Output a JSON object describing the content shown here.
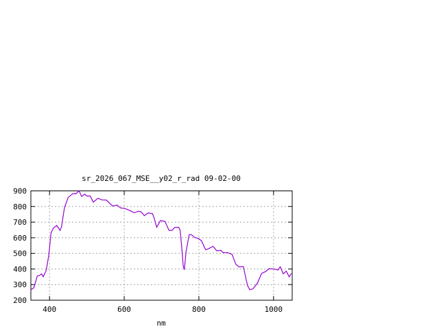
{
  "chart_data": {
    "type": "line",
    "title": "sr_2026_067_MSE__y02_r_rad 09-02-00",
    "xlabel": "nm",
    "ylabel": "",
    "xlim": [
      350,
      1050
    ],
    "ylim": [
      200,
      900
    ],
    "xticks": [
      400,
      600,
      800,
      1000
    ],
    "yticks": [
      200,
      300,
      400,
      500,
      600,
      700,
      800,
      900
    ],
    "grid": true,
    "line_color": "#9400d3",
    "series": [
      {
        "x": [
          349,
          358,
          367,
          373,
          379,
          383,
          391,
          398,
          404,
          410,
          419,
          428,
          432,
          440,
          450,
          462,
          471,
          479,
          486,
          494,
          500,
          509,
          517,
          530,
          540,
          552,
          569,
          581,
          590,
          602,
          615,
          627,
          639,
          645,
          654,
          664,
          676,
          681,
          687,
          697,
          709,
          720,
          728,
          736,
          746,
          750,
          755,
          758,
          761,
          766,
          774,
          780,
          789,
          798,
          807,
          818,
          826,
          838,
          848,
          859,
          865,
          878,
          889,
          899,
          908,
          919,
          930,
          936,
          945,
          957,
          968,
          979,
          988,
          997,
          1006,
          1012,
          1018,
          1026,
          1034,
          1042,
          1048
        ],
        "y": [
          267,
          280,
          355,
          358,
          369,
          350,
          390,
          487,
          630,
          661,
          679,
          647,
          669,
          793,
          858,
          882,
          882,
          901,
          864,
          879,
          867,
          867,
          828,
          853,
          842,
          841,
          803,
          809,
          791,
          787,
          774,
          760,
          770,
          766,
          741,
          759,
          754,
          720,
          667,
          710,
          705,
          647,
          647,
          667,
          667,
          647,
          515,
          420,
          395,
          515,
          620,
          620,
          601,
          596,
          581,
          523,
          530,
          545,
          516,
          519,
          504,
          504,
          493,
          430,
          413,
          416,
          296,
          267,
          273,
          310,
          372,
          384,
          402,
          401,
          398,
          393,
          414,
          369,
          386,
          350,
          372
        ]
      }
    ]
  }
}
